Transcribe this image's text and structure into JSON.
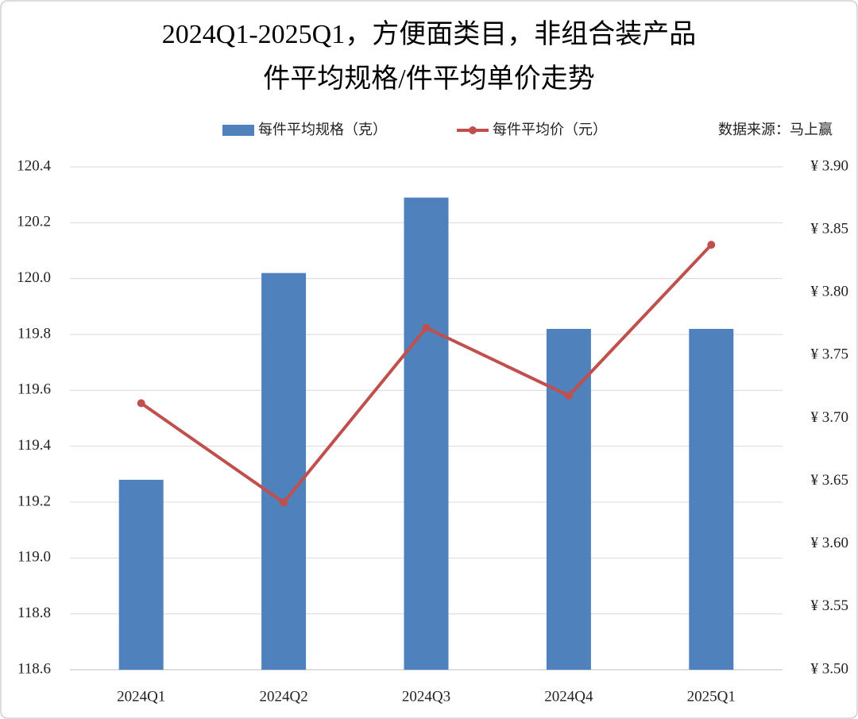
{
  "chart_data": {
    "type": "bar",
    "title": "2024Q1-2025Q1，方便面类目，非组合装产品",
    "subtitle": "件平均规格/件平均单价走势",
    "annotation": "数据来源：马上赢",
    "categories": [
      "2024Q1",
      "2024Q2",
      "2024Q3",
      "2024Q4",
      "2025Q1"
    ],
    "series": [
      {
        "name": "每件平均规格（克）",
        "type": "bar",
        "color": "#4f81bd",
        "values": [
          119.28,
          120.02,
          120.29,
          119.82,
          119.82
        ]
      },
      {
        "name": "每件平均价（元）",
        "type": "line",
        "axis": "y2",
        "color": "#c0504d",
        "values": [
          3.712,
          3.633,
          3.772,
          3.718,
          3.838
        ]
      }
    ],
    "ylim": [
      118.6,
      120.4
    ],
    "yticks": [
      {
        "value": 118.6,
        "label": "118.6"
      },
      {
        "value": 118.8,
        "label": "118.8"
      },
      {
        "value": 119.0,
        "label": "119.0"
      },
      {
        "value": 119.2,
        "label": "119.2"
      },
      {
        "value": 119.4,
        "label": "119.4"
      },
      {
        "value": 119.6,
        "label": "119.6"
      },
      {
        "value": 119.8,
        "label": "119.8"
      },
      {
        "value": 120.0,
        "label": "120.0"
      },
      {
        "value": 120.2,
        "label": "120.2"
      },
      {
        "value": 120.4,
        "label": "120.4"
      }
    ],
    "y2lim": [
      3.5,
      3.9
    ],
    "y2ticks": [
      {
        "value": 3.5,
        "label": "¥ 3.50"
      },
      {
        "value": 3.55,
        "label": "¥ 3.55"
      },
      {
        "value": 3.6,
        "label": "¥ 3.60"
      },
      {
        "value": 3.65,
        "label": "¥ 3.65"
      },
      {
        "value": 3.7,
        "label": "¥ 3.70"
      },
      {
        "value": 3.75,
        "label": "¥ 3.75"
      },
      {
        "value": 3.8,
        "label": "¥ 3.80"
      },
      {
        "value": 3.85,
        "label": "¥ 3.85"
      },
      {
        "value": 3.9,
        "label": "¥ 3.90"
      }
    ],
    "grid": true
  }
}
